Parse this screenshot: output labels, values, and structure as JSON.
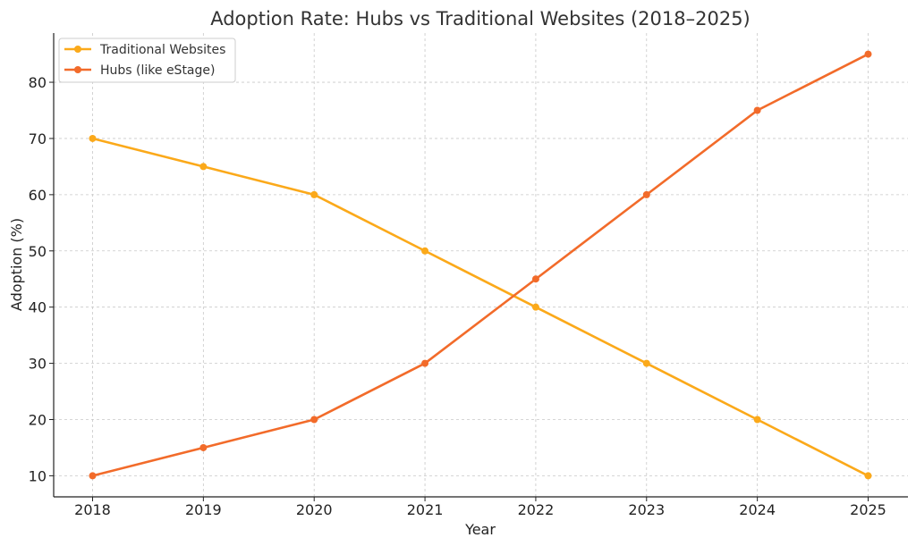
{
  "chart_data": {
    "type": "line",
    "title": "Adoption Rate: Hubs vs Traditional Websites (2018–2025)",
    "xlabel": "Year",
    "ylabel": "Adoption (%)",
    "x": [
      "2018",
      "2019",
      "2020",
      "2021",
      "2022",
      "2023",
      "2024",
      "2025"
    ],
    "ylim": [
      6.25,
      88.75
    ],
    "yticks": [
      "10",
      "20",
      "30",
      "40",
      "50",
      "60",
      "70",
      "80"
    ],
    "grid": true,
    "legend_position": "top-left",
    "series": [
      {
        "name": "Traditional Websites",
        "color": "#FBA91A",
        "marker": "circle",
        "values": [
          70,
          65,
          60,
          50,
          40,
          30,
          20,
          10
        ]
      },
      {
        "name": "Hubs (like eStage)",
        "color": "#F26B2A",
        "marker": "circle",
        "values": [
          10,
          15,
          20,
          30,
          45,
          60,
          75,
          85
        ]
      }
    ]
  }
}
